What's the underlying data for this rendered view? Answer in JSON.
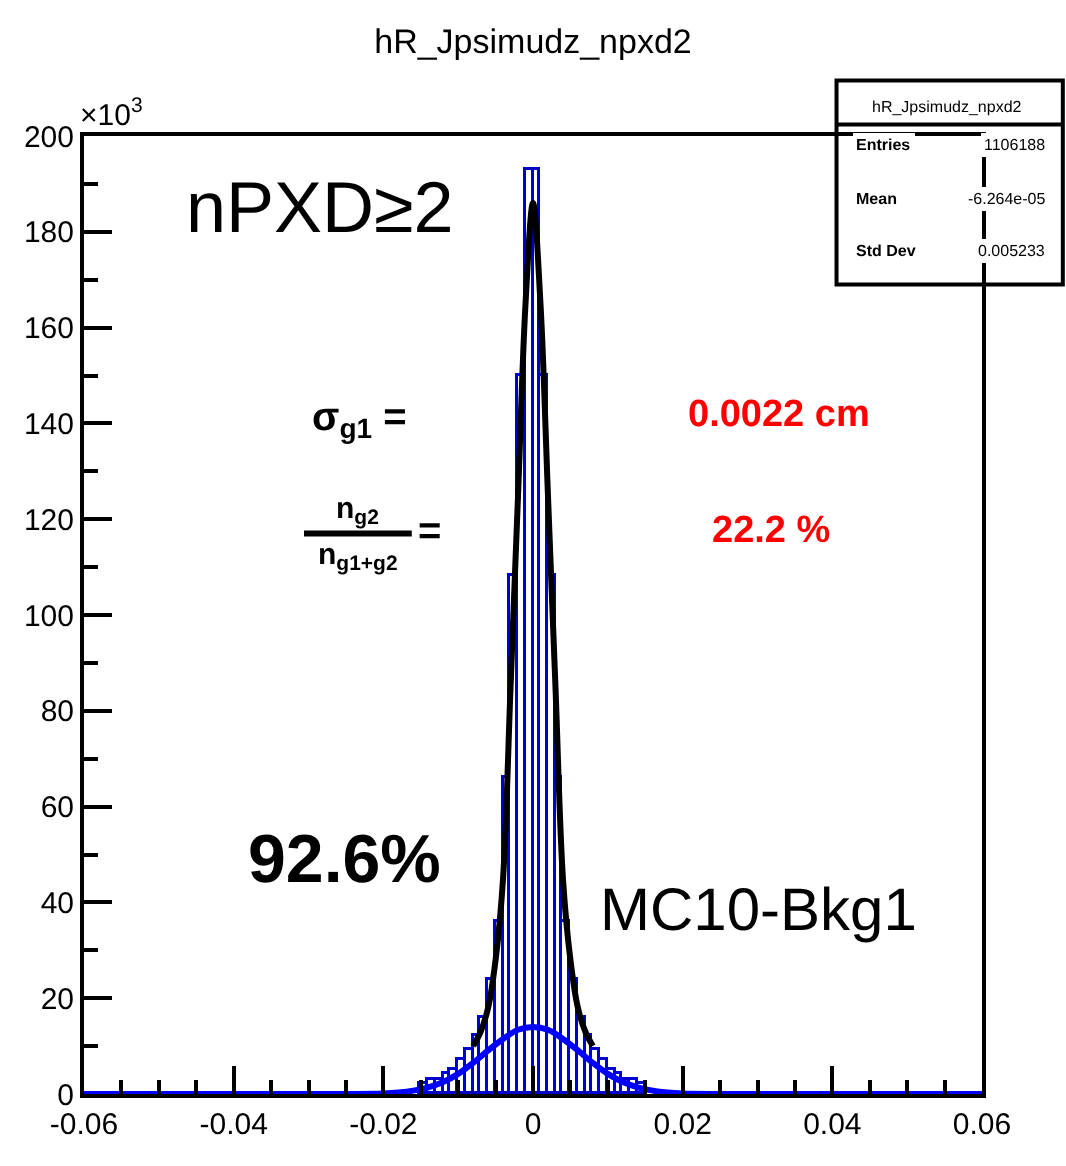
{
  "chart_data": {
    "type": "histogram",
    "title": "hR_Jpsimudz_npxd2",
    "bins": [
      -0.03,
      -0.029,
      -0.028,
      -0.027,
      -0.026,
      -0.025,
      -0.024,
      -0.023,
      -0.022,
      -0.021,
      -0.02,
      -0.019,
      -0.018,
      -0.017,
      -0.016,
      -0.015,
      -0.014,
      -0.013,
      -0.012,
      -0.011,
      -0.01,
      -0.009,
      -0.008,
      -0.007,
      -0.006,
      -0.005,
      -0.004,
      -0.003,
      -0.002,
      -0.001,
      0,
      0.001,
      0.002,
      0.003,
      0.004,
      0.005,
      0.006,
      0.007,
      0.008,
      0.009,
      0.01,
      0.011,
      0.012,
      0.013,
      0.014,
      0.015,
      0.016,
      0.017,
      0.018,
      0.019,
      0.02,
      0.021,
      0.022,
      0.023,
      0.024,
      0.025,
      0.026,
      0.027,
      0.028,
      0.029,
      0.03
    ],
    "values": [
      0,
      0,
      0,
      0,
      0,
      0,
      0,
      0,
      0,
      0,
      0,
      null,
      null,
      null,
      null,
      2,
      3,
      3,
      4,
      5,
      7,
      9,
      12,
      16,
      24,
      36,
      66,
      108,
      150,
      193,
      193,
      150,
      108,
      66,
      36,
      24,
      16,
      12,
      9,
      7,
      5,
      4,
      3,
      3,
      2,
      null,
      null,
      null,
      null,
      0,
      0,
      0,
      0,
      0,
      0,
      0,
      0,
      0,
      0,
      0
    ],
    "color": "#0000cc",
    "series": [
      {
        "type": "line",
        "color": "#000000",
        "x": [
          -0.008,
          -0.007,
          -0.006,
          -0.005,
          -0.004,
          -0.003,
          -0.002,
          -0.001,
          0,
          0.001,
          0.002,
          0.003,
          0.004,
          0.005,
          0.006,
          0.007,
          0.008
        ],
        "values": [
          10,
          13,
          18,
          28,
          45,
          85,
          125,
          165,
          186,
          165,
          125,
          85,
          45,
          28,
          18,
          13,
          10
        ]
      },
      {
        "type": "line",
        "color": "#0000ff",
        "x": [
          -0.06,
          -0.025,
          -0.02,
          -0.018,
          -0.016,
          -0.014,
          -0.012,
          -0.01,
          -0.008,
          -0.006,
          -0.004,
          -0.002,
          0,
          0.002,
          0.004,
          0.006,
          0.008,
          0.01,
          0.012,
          0.014,
          0.016,
          0.018,
          0.02,
          0.025,
          0.06
        ],
        "values": [
          0,
          0,
          0.1,
          0.3,
          0.7,
          1.4,
          2.5,
          4.2,
          6.5,
          9.1,
          11.5,
          13.4,
          14,
          13.4,
          11.5,
          9.1,
          6.5,
          4.2,
          2.5,
          1.4,
          0.7,
          0.3,
          0.1,
          0,
          0
        ]
      }
    ],
    "xlim": [
      -0.06,
      0.06
    ],
    "xticks": [
      -0.06,
      -0.04,
      -0.02,
      0,
      0.02,
      0.04,
      0.06
    ],
    "ylim": [
      0,
      200
    ],
    "yticks": [
      0,
      20,
      40,
      60,
      80,
      100,
      120,
      140,
      160,
      180,
      200
    ],
    "annotations": [
      "×10$^{3}$",
      "nPXD≥2",
      "σ$_{g1}$ =",
      "n$_{g2}$",
      "n$_{g1+g2}$",
      "=",
      "0.0022 cm",
      "22.2 %",
      "92.6%",
      "MC10-Bkg1",
      "hR_Jpsimudz_npxd2",
      "Entries",
      "1106188",
      "Mean",
      "-6.264e-05",
      "Std Dev",
      "0.005233"
    ]
  }
}
